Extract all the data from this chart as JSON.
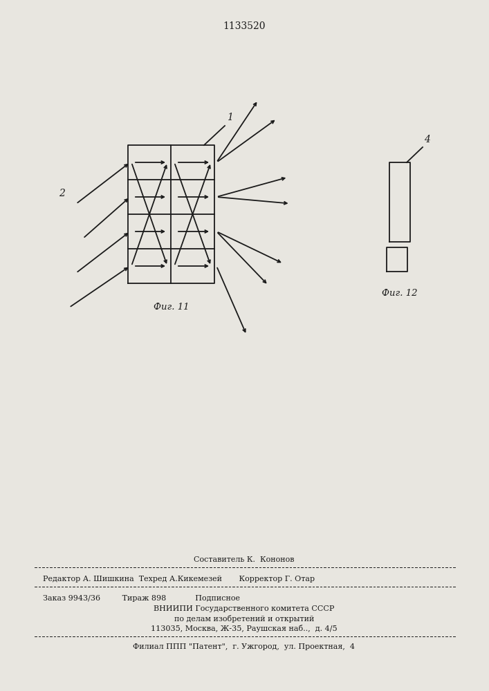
{
  "title": "1133520",
  "title_fontsize": 10,
  "fig11_label": "Фиг. 11",
  "fig12_label": "Фиг. 12",
  "label1": "1",
  "label2": "2",
  "label4": "4",
  "bg_color": "#e8e6e0",
  "line_color": "#1a1a1a",
  "footer_lines": [
    "Составитель К.  Кононов",
    "Редактор А. Шишкина  Техред А.Кикемезей       Корректор Г. Отар",
    "Заказ 9943/36         Тираж 898            Подписное",
    "ВНИИПИ Государственного комитета СССР",
    "по делам изобретений и открытий",
    "113035, Москва, Ж-35, Раушская наб..,  д. 4/5",
    "Филиал ППП \"Патент\",  г. Ужгород,  ул. Проектная,  4"
  ]
}
